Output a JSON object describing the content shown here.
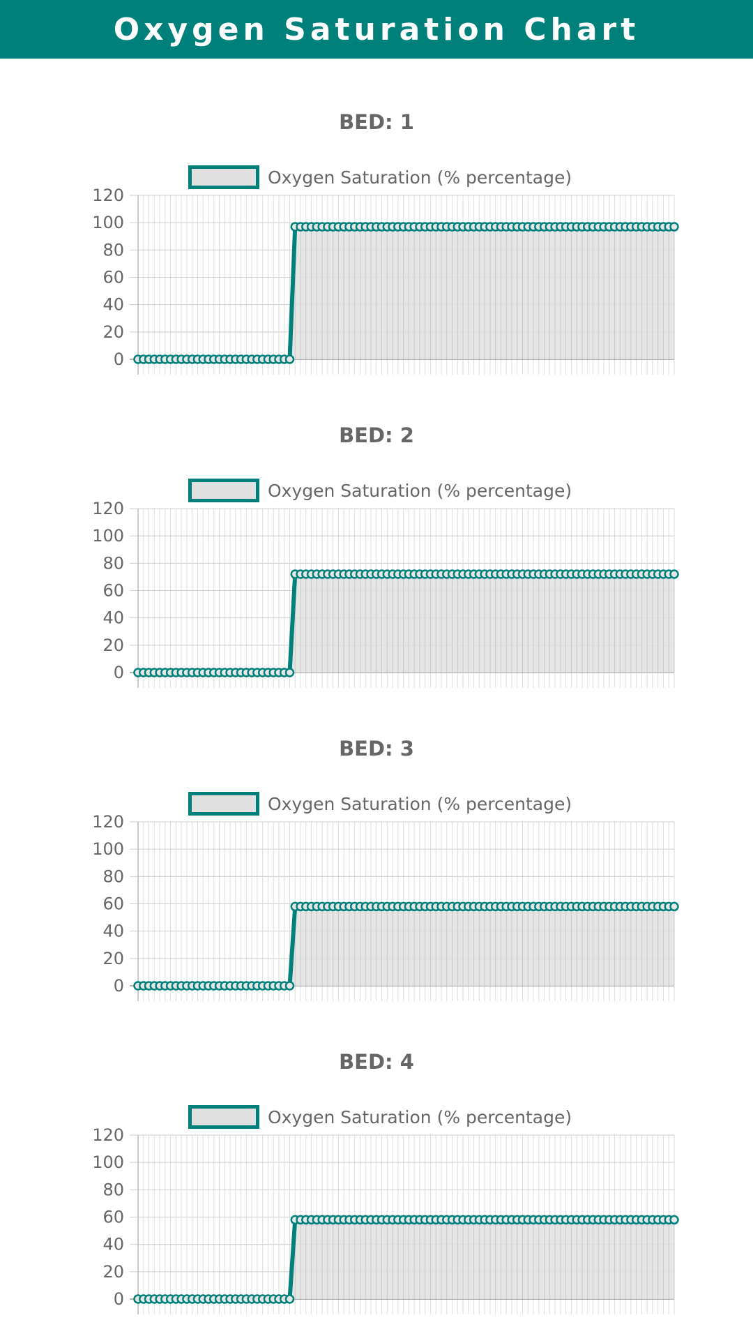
{
  "app": {
    "title": "Oxygen Saturation Chart",
    "accent_color": "#00807a",
    "fill_color": "#e0e0e0"
  },
  "chart_data": [
    {
      "type": "line",
      "title": "BED: 1",
      "legend": "Oxygen Saturation (% percentage)",
      "legend_position": "top",
      "y_ticks": [
        "120",
        "100",
        "80",
        "60",
        "40",
        "20",
        "0"
      ],
      "ylim": [
        0,
        120
      ],
      "grid": true,
      "fill": true,
      "step_index": 28,
      "point_count": 100,
      "series": [
        {
          "values": {
            "before": 0,
            "after": 97
          }
        }
      ]
    },
    {
      "type": "line",
      "title": "BED: 2",
      "legend": "Oxygen Saturation (% percentage)",
      "legend_position": "top",
      "y_ticks": [
        "120",
        "100",
        "80",
        "60",
        "40",
        "20",
        "0"
      ],
      "ylim": [
        0,
        120
      ],
      "grid": true,
      "fill": true,
      "step_index": 28,
      "point_count": 100,
      "series": [
        {
          "values": {
            "before": 0,
            "after": 72
          }
        }
      ]
    },
    {
      "type": "line",
      "title": "BED: 3",
      "legend": "Oxygen Saturation (% percentage)",
      "legend_position": "top",
      "y_ticks": [
        "120",
        "100",
        "80",
        "60",
        "40",
        "20",
        "0"
      ],
      "ylim": [
        0,
        120
      ],
      "grid": true,
      "fill": true,
      "step_index": 28,
      "point_count": 100,
      "series": [
        {
          "values": {
            "before": 0,
            "after": 58
          }
        }
      ]
    },
    {
      "type": "line",
      "title": "BED: 4",
      "legend": "Oxygen Saturation (% percentage)",
      "legend_position": "top",
      "y_ticks": [
        "120",
        "100",
        "80",
        "60",
        "40",
        "20",
        "0"
      ],
      "ylim": [
        0,
        120
      ],
      "grid": true,
      "fill": true,
      "step_index": 28,
      "point_count": 100,
      "series": [
        {
          "values": {
            "before": 0,
            "after": 58
          }
        }
      ]
    }
  ]
}
